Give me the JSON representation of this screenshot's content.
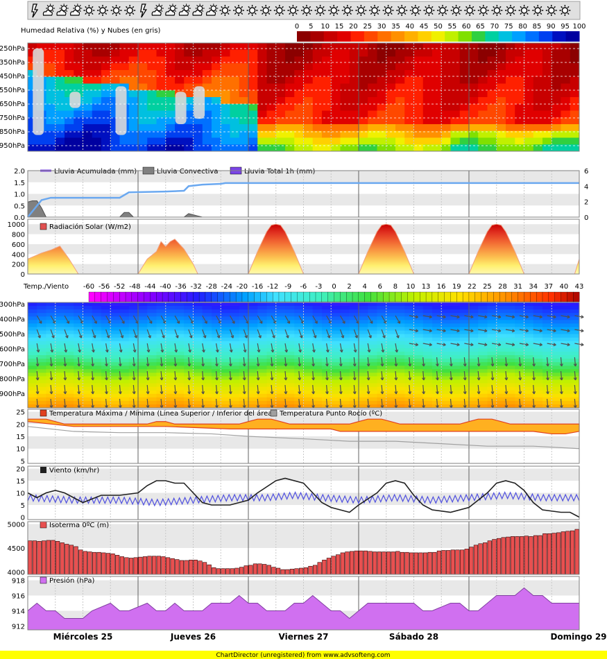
{
  "chart_data": [
    {
      "type": "heatmap",
      "title": "Humedad Relativa (%) y Nubes (en gris)",
      "colorbar_ticks": [
        "0",
        "5",
        "10",
        "15",
        "20",
        "25",
        "30",
        "35",
        "40",
        "45",
        "50",
        "55",
        "60",
        "65",
        "70",
        "75",
        "80",
        "85",
        "90",
        "95",
        "100"
      ],
      "colors": [
        "#8b0000",
        "#a80000",
        "#c80000",
        "#e00000",
        "#ff2000",
        "#ff4800",
        "#ff7000",
        "#ff9000",
        "#ffb000",
        "#ffd000",
        "#f0f000",
        "#c0f000",
        "#80e000",
        "#30d040",
        "#00d0a0",
        "#00c0e0",
        "#00a0ff",
        "#0070ff",
        "#0040f0",
        "#0010c0",
        "#0000a0"
      ],
      "levels": [
        "250hPa",
        "350hPa",
        "450hPa",
        "550hPa",
        "650hPa",
        "750hPa",
        "850hPa",
        "950hPa"
      ]
    },
    {
      "type": "area",
      "legend": [
        {
          "name": "Lluvia Acumulada (mm)",
          "color": "#7b44e8"
        },
        {
          "name": "Lluvia Convectiva",
          "color": "#808080"
        },
        {
          "name": "Lluvia Total 1h (mm)",
          "color": "#7b44e8"
        }
      ],
      "yticks_left": [
        "2.0",
        "1.5",
        "1.0",
        "0.5",
        "0.0"
      ],
      "yticks_right": [
        "6",
        "4",
        "2",
        "0"
      ],
      "ylim_left": [
        0,
        2
      ],
      "ylim_right": [
        0,
        6
      ],
      "accumulated_right_axis": [
        [
          0,
          0
        ],
        [
          3,
          2.2
        ],
        [
          5,
          2.5
        ],
        [
          20,
          2.5
        ],
        [
          22,
          3.2
        ],
        [
          30,
          3.3
        ],
        [
          34,
          3.4
        ],
        [
          35,
          4
        ],
        [
          38,
          4.2
        ],
        [
          42,
          4.3
        ],
        [
          43,
          4.4
        ],
        [
          120,
          4.4
        ]
      ],
      "convective": [
        [
          0,
          0.65
        ],
        [
          1,
          0.7
        ],
        [
          2,
          0.7
        ],
        [
          3,
          0.4
        ],
        [
          4,
          0
        ],
        [
          20,
          0
        ],
        [
          21,
          0.2
        ],
        [
          22,
          0.2
        ],
        [
          23,
          0
        ],
        [
          34,
          0
        ],
        [
          35,
          0.15
        ],
        [
          36,
          0.1
        ],
        [
          37,
          0.05
        ],
        [
          38,
          0
        ],
        [
          120,
          0
        ]
      ]
    },
    {
      "type": "area",
      "legend": [
        {
          "name": "Radiación Solar (W/m2)",
          "color": "#e05050"
        }
      ],
      "yticks": [
        "1000",
        "800",
        "600",
        "400",
        "200",
        "0"
      ],
      "ylim": [
        0,
        1100
      ],
      "colors": [
        "#c80000",
        "#e03020",
        "#f06030",
        "#f89040",
        "#fcc050",
        "#fff070",
        "#fff8b0"
      ],
      "values": [
        [
          0,
          300
        ],
        [
          3,
          420
        ],
        [
          5,
          480
        ],
        [
          7,
          560
        ],
        [
          9,
          300
        ],
        [
          11,
          0
        ],
        [
          24,
          0
        ],
        [
          26,
          300
        ],
        [
          28,
          450
        ],
        [
          29,
          650
        ],
        [
          30,
          550
        ],
        [
          31,
          650
        ],
        [
          32,
          700
        ],
        [
          34,
          500
        ],
        [
          36,
          200
        ],
        [
          37,
          0
        ],
        [
          48,
          0
        ],
        [
          50,
          450
        ],
        [
          52,
          850
        ],
        [
          53,
          980
        ],
        [
          54,
          1000
        ],
        [
          55,
          980
        ],
        [
          56,
          850
        ],
        [
          58,
          450
        ],
        [
          60,
          0
        ],
        [
          72,
          0
        ],
        [
          74,
          450
        ],
        [
          76,
          850
        ],
        [
          77,
          980
        ],
        [
          78,
          1000
        ],
        [
          79,
          980
        ],
        [
          80,
          850
        ],
        [
          82,
          450
        ],
        [
          84,
          0
        ],
        [
          96,
          0
        ],
        [
          98,
          450
        ],
        [
          100,
          850
        ],
        [
          101,
          980
        ],
        [
          102,
          1000
        ],
        [
          103,
          980
        ],
        [
          104,
          850
        ],
        [
          106,
          450
        ],
        [
          108,
          0
        ],
        [
          119,
          0
        ],
        [
          120,
          300
        ]
      ]
    },
    {
      "type": "heatmap",
      "title": "Temp./Viento",
      "colorbar_ticks": [
        "-60",
        "-56",
        "-52",
        "-48",
        "-44",
        "-40",
        "-36",
        "-32",
        "-28",
        "-24",
        "-20",
        "-16",
        "-12",
        "-9",
        "-6",
        "-3",
        "0",
        "2",
        "4",
        "6",
        "8",
        "10",
        "13",
        "16",
        "19",
        "22",
        "25",
        "28",
        "31",
        "34",
        "37",
        "40",
        "43"
      ],
      "levels": [
        "300hPa",
        "400hPa",
        "500hPa",
        "600hPa",
        "700hPa",
        "800hPa",
        "900hPa"
      ]
    },
    {
      "type": "area",
      "legend": [
        {
          "name": "Temperatura Máxima / Minima (Linea Superior / Inferior del área)",
          "color": "#e04020"
        },
        {
          "name": "Temperatura Punto Rocío (ºC)",
          "color": "#a0a0a0"
        }
      ],
      "yticks": [
        "25",
        "20",
        "15",
        "10",
        "5"
      ],
      "ylim": [
        4,
        26
      ],
      "max_temp": [
        [
          0,
          22
        ],
        [
          4,
          22
        ],
        [
          6,
          21
        ],
        [
          8,
          20
        ],
        [
          24,
          20
        ],
        [
          26,
          20
        ],
        [
          28,
          21
        ],
        [
          30,
          21
        ],
        [
          32,
          20
        ],
        [
          46,
          20
        ],
        [
          48,
          21
        ],
        [
          50,
          22
        ],
        [
          53,
          22
        ],
        [
          55,
          21
        ],
        [
          57,
          20
        ],
        [
          70,
          20
        ],
        [
          72,
          21
        ],
        [
          74,
          22
        ],
        [
          77,
          22
        ],
        [
          79,
          21
        ],
        [
          81,
          20
        ],
        [
          94,
          20
        ],
        [
          96,
          21
        ],
        [
          98,
          22
        ],
        [
          101,
          22
        ],
        [
          103,
          21
        ],
        [
          105,
          20
        ],
        [
          120,
          20
        ]
      ],
      "min_temp": [
        [
          0,
          21
        ],
        [
          10,
          19
        ],
        [
          20,
          19
        ],
        [
          24,
          19
        ],
        [
          30,
          19
        ],
        [
          44,
          18
        ],
        [
          50,
          18
        ],
        [
          56,
          18
        ],
        [
          60,
          18
        ],
        [
          66,
          18
        ],
        [
          68,
          17
        ],
        [
          80,
          17
        ],
        [
          82,
          17
        ],
        [
          88,
          17
        ],
        [
          92,
          17
        ],
        [
          104,
          17
        ],
        [
          110,
          17
        ],
        [
          114,
          16
        ],
        [
          117,
          16
        ],
        [
          120,
          17
        ]
      ],
      "dew_point": [
        [
          0,
          19
        ],
        [
          10,
          17
        ],
        [
          20,
          16.5
        ],
        [
          30,
          16.5
        ],
        [
          40,
          16
        ],
        [
          48,
          15
        ],
        [
          60,
          14
        ],
        [
          70,
          13
        ],
        [
          80,
          13
        ],
        [
          90,
          12
        ],
        [
          100,
          11
        ],
        [
          110,
          11
        ],
        [
          120,
          10
        ]
      ]
    },
    {
      "type": "line",
      "legend": [
        {
          "name": "Viento (km/hr)",
          "color": "#202020"
        }
      ],
      "yticks": [
        "20",
        "15",
        "10",
        "5",
        "0"
      ],
      "ylim": [
        -1,
        21
      ],
      "wind_speed": [
        [
          0,
          10
        ],
        [
          2,
          8
        ],
        [
          4,
          10
        ],
        [
          6,
          11
        ],
        [
          8,
          10
        ],
        [
          10,
          8
        ],
        [
          12,
          6
        ],
        [
          16,
          9
        ],
        [
          20,
          9
        ],
        [
          24,
          10
        ],
        [
          26,
          13
        ],
        [
          28,
          15
        ],
        [
          30,
          15
        ],
        [
          32,
          14
        ],
        [
          34,
          14
        ],
        [
          36,
          10
        ],
        [
          38,
          6
        ],
        [
          40,
          5
        ],
        [
          44,
          5
        ],
        [
          46,
          6
        ],
        [
          48,
          7
        ],
        [
          50,
          10
        ],
        [
          54,
          15
        ],
        [
          56,
          16
        ],
        [
          60,
          14
        ],
        [
          62,
          10
        ],
        [
          64,
          6
        ],
        [
          66,
          4
        ],
        [
          68,
          3
        ],
        [
          70,
          2
        ],
        [
          72,
          5
        ],
        [
          76,
          10
        ],
        [
          78,
          14
        ],
        [
          80,
          15
        ],
        [
          82,
          14
        ],
        [
          84,
          9
        ],
        [
          86,
          5
        ],
        [
          88,
          3
        ],
        [
          92,
          2
        ],
        [
          96,
          4
        ],
        [
          100,
          10
        ],
        [
          102,
          14
        ],
        [
          104,
          15
        ],
        [
          106,
          14
        ],
        [
          108,
          11
        ],
        [
          110,
          6
        ],
        [
          112,
          3
        ],
        [
          116,
          2
        ],
        [
          118,
          2
        ],
        [
          120,
          0
        ]
      ],
      "gust_speed": [
        [
          0,
          8
        ],
        [
          10,
          7
        ],
        [
          20,
          7
        ],
        [
          28,
          6
        ],
        [
          36,
          7
        ],
        [
          44,
          8
        ],
        [
          52,
          8
        ],
        [
          58,
          9
        ],
        [
          64,
          8
        ],
        [
          72,
          7
        ],
        [
          80,
          8
        ],
        [
          88,
          7
        ],
        [
          96,
          8
        ],
        [
          104,
          9
        ],
        [
          112,
          8
        ],
        [
          120,
          8
        ]
      ]
    },
    {
      "type": "bar",
      "legend": [
        {
          "name": "Isoterma 0ºC (m)",
          "color": "#e85050"
        }
      ],
      "yticks": [
        "5000",
        "4500",
        "4000"
      ],
      "ylim": [
        3950,
        5050
      ],
      "values": [
        4650,
        4650,
        4640,
        4650,
        4660,
        4660,
        4640,
        4610,
        4580,
        4560,
        4530,
        4460,
        4430,
        4420,
        4410,
        4410,
        4400,
        4390,
        4380,
        4350,
        4320,
        4300,
        4290,
        4300,
        4310,
        4320,
        4330,
        4330,
        4330,
        4320,
        4300,
        4280,
        4260,
        4240,
        4240,
        4250,
        4250,
        4230,
        4200,
        4150,
        4090,
        4070,
        4070,
        4070,
        4070,
        4080,
        4100,
        4130,
        4140,
        4170,
        4170,
        4160,
        4140,
        4100,
        4080,
        4050,
        4050,
        4060,
        4070,
        4080,
        4090,
        4120,
        4140,
        4200,
        4250,
        4290,
        4330,
        4360,
        4400,
        4420,
        4430,
        4440,
        4440,
        4440,
        4430,
        4420,
        4420,
        4420,
        4420,
        4420,
        4430,
        4410,
        4410,
        4400,
        4400,
        4400,
        4400,
        4410,
        4410,
        4440,
        4450,
        4450,
        4460,
        4460,
        4460,
        4480,
        4520,
        4560,
        4590,
        4610,
        4650,
        4680,
        4700,
        4720,
        4730,
        4740,
        4740,
        4740,
        4750,
        4740,
        4760,
        4760,
        4800,
        4800,
        4810,
        4820,
        4840,
        4850,
        4860,
        4890
      ]
    },
    {
      "type": "area",
      "legend": [
        {
          "name": "Presión (hPa)",
          "color": "#d070f0"
        }
      ],
      "yticks": [
        "918",
        "916",
        "914",
        "912"
      ],
      "ylim": [
        911.5,
        918.5
      ],
      "values": [
        [
          0,
          914
        ],
        [
          2,
          915
        ],
        [
          4,
          914
        ],
        [
          6,
          914
        ],
        [
          8,
          913
        ],
        [
          12,
          913
        ],
        [
          14,
          914
        ],
        [
          18,
          915
        ],
        [
          20,
          914
        ],
        [
          22,
          914
        ],
        [
          26,
          915
        ],
        [
          28,
          914
        ],
        [
          30,
          914
        ],
        [
          32,
          915
        ],
        [
          34,
          914
        ],
        [
          38,
          914
        ],
        [
          40,
          915
        ],
        [
          44,
          915
        ],
        [
          46,
          916
        ],
        [
          48,
          915
        ],
        [
          50,
          915
        ],
        [
          52,
          914
        ],
        [
          56,
          914
        ],
        [
          58,
          915
        ],
        [
          60,
          915
        ],
        [
          62,
          916
        ],
        [
          64,
          915
        ],
        [
          66,
          914
        ],
        [
          68,
          914
        ],
        [
          70,
          913
        ],
        [
          72,
          914
        ],
        [
          74,
          915
        ],
        [
          76,
          915
        ],
        [
          80,
          915
        ],
        [
          84,
          915
        ],
        [
          86,
          914
        ],
        [
          88,
          914
        ],
        [
          92,
          915
        ],
        [
          94,
          915
        ],
        [
          96,
          914
        ],
        [
          98,
          914
        ],
        [
          100,
          915
        ],
        [
          102,
          916
        ],
        [
          104,
          916
        ],
        [
          106,
          916
        ],
        [
          108,
          917
        ],
        [
          110,
          916
        ],
        [
          112,
          916
        ],
        [
          114,
          915
        ],
        [
          118,
          915
        ],
        [
          120,
          915
        ]
      ]
    }
  ],
  "header": {
    "weather_icons": [
      "storm",
      "partly-cloudy",
      "partly-cloudy",
      "partly-cloudy",
      "sun",
      "sun",
      "sun",
      "sun",
      "storm",
      "partly-cloudy",
      "partly-cloudy",
      "partly-cloudy",
      "partly-cloudy",
      "partly-cloudy",
      "sun",
      "sun",
      "sun",
      "sun",
      "sun",
      "sun",
      "sun",
      "sun",
      "sun",
      "sun",
      "sun",
      "sun",
      "sun",
      "sun",
      "sun",
      "sun",
      "sun",
      "sun",
      "sun",
      "sun",
      "sun",
      "sun",
      "sun",
      "sun",
      "sun",
      "sun"
    ]
  },
  "x_axis": {
    "days": [
      "Miércoles 25",
      "Jueves 26",
      "Viernes 27",
      "Sábado 28",
      "Domingo 29"
    ],
    "hours": 120
  },
  "footer": {
    "text": "ChartDirector (unregistered) from www.advsofteng.com"
  }
}
